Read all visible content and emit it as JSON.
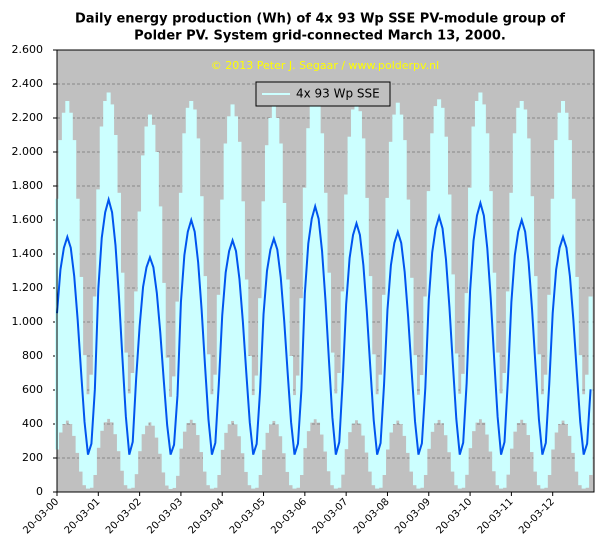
{
  "chart_data": {
    "type": "line",
    "title": [
      "Daily energy production (Wh) of 4x 93 Wp SSE PV-module group of",
      "Polder PV. System grid-connected March 13, 2000."
    ],
    "subtitle": "© 2013 Peter J. Segaar / www.polderpv.nl",
    "legend": "top",
    "grid": true,
    "background": "#c0c0c0",
    "xlim": [
      0,
      156
    ],
    "xticks": [
      {
        "value": 0,
        "label": "20-03-00"
      },
      {
        "value": 12,
        "label": "20-03-01"
      },
      {
        "value": 24,
        "label": "20-03-02"
      },
      {
        "value": 36,
        "label": "20-03-03"
      },
      {
        "value": 48,
        "label": "20-03-04"
      },
      {
        "value": 60,
        "label": "20-03-05"
      },
      {
        "value": 72,
        "label": "20-03-06"
      },
      {
        "value": 84,
        "label": "20-03-07"
      },
      {
        "value": 96,
        "label": "20-03-08"
      },
      {
        "value": 108,
        "label": "20-03-09"
      },
      {
        "value": 120,
        "label": "20-03-10"
      },
      {
        "value": 132,
        "label": "20-03-11"
      },
      {
        "value": 144,
        "label": "20-03-12"
      }
    ],
    "ylim": [
      0,
      2600
    ],
    "yticks": [
      0,
      200,
      400,
      600,
      800,
      {
        "value": 1000,
        "label": "1.000"
      },
      {
        "value": 1200,
        "label": "1.200"
      },
      {
        "value": 1400,
        "label": "1.400"
      },
      {
        "value": 1600,
        "label": "1.600"
      },
      {
        "value": 1800,
        "label": "1.800"
      },
      {
        "value": 2000,
        "label": "2.000"
      },
      {
        "value": 2200,
        "label": "2.200"
      },
      {
        "value": 2400,
        "label": "2.400"
      },
      {
        "value": 2600,
        "label": "2.600"
      }
    ],
    "x": [
      0,
      1,
      2,
      3,
      4,
      5,
      6,
      7,
      8,
      9,
      10,
      11,
      12,
      13,
      14,
      15,
      16,
      17,
      18,
      19,
      20,
      21,
      22,
      23,
      24,
      25,
      26,
      27,
      28,
      29,
      30,
      31,
      32,
      33,
      34,
      35,
      36,
      37,
      38,
      39,
      40,
      41,
      42,
      43,
      44,
      45,
      46,
      47,
      48,
      49,
      50,
      51,
      52,
      53,
      54,
      55,
      56,
      57,
      58,
      59,
      60,
      61,
      62,
      63,
      64,
      65,
      66,
      67,
      68,
      69,
      70,
      71,
      72,
      73,
      74,
      75,
      76,
      77,
      78,
      79,
      80,
      81,
      82,
      83,
      84,
      85,
      86,
      87,
      88,
      89,
      90,
      91,
      92,
      93,
      94,
      95,
      96,
      97,
      98,
      99,
      100,
      101,
      102,
      103,
      104,
      105,
      106,
      107,
      108,
      109,
      110,
      111,
      112,
      113,
      114,
      115,
      116,
      117,
      118,
      119,
      120,
      121,
      122,
      123,
      124,
      125,
      126,
      127,
      128,
      129,
      130,
      131,
      132,
      133,
      134,
      135,
      136,
      137,
      138,
      139,
      140,
      141,
      142,
      143,
      144,
      145,
      146,
      147,
      148,
      149,
      150,
      151,
      152,
      153,
      154,
      155
    ],
    "series": [
      {
        "name": "4x 93 Wp SSE",
        "color": "#ccffff",
        "values": [
          1725,
          2070,
          2231,
          2300,
          2231,
          2070,
          1725,
          1265,
          805,
          575,
          690,
          1150,
          1780,
          2150,
          2300,
          2350,
          2280,
          2100,
          1760,
          1290,
          820,
          580,
          700,
          1180,
          1650,
          1980,
          2150,
          2220,
          2160,
          2000,
          1680,
          1230,
          790,
          560,
          680,
          1120,
          1760,
          2110,
          2260,
          2300,
          2250,
          2080,
          1740,
          1270,
          810,
          575,
          690,
          1160,
          1720,
          2050,
          2210,
          2280,
          2210,
          2060,
          1710,
          1250,
          800,
          570,
          685,
          1140,
          1710,
          2040,
          2200,
          2270,
          2200,
          2050,
          1700,
          1250,
          800,
          570,
          685,
          1140,
          1790,
          2140,
          2300,
          2340,
          2280,
          2110,
          1760,
          1290,
          820,
          580,
          700,
          1180,
          1750,
          2090,
          2250,
          2300,
          2240,
          2080,
          1730,
          1270,
          810,
          575,
          690,
          1160,
          1730,
          2060,
          2220,
          2290,
          2220,
          2070,
          1720,
          1260,
          805,
          572,
          688,
          1150,
          1770,
          2110,
          2270,
          2310,
          2260,
          2090,
          1750,
          1280,
          815,
          578,
          695,
          1170,
          1790,
          2150,
          2300,
          2350,
          2280,
          2110,
          1770,
          1290,
          820,
          580,
          700,
          1180,
          1760,
          2110,
          2260,
          2300,
          2250,
          2080,
          1740,
          1270,
          810,
          575,
          690,
          1160,
          1725,
          2070,
          2231,
          2300,
          2231,
          2070,
          1725,
          1265,
          805,
          575,
          690,
          1150
        ],
        "low": [
          250,
          350,
          400,
          420,
          400,
          330,
          230,
          120,
          40,
          20,
          25,
          100,
          260,
          360,
          410,
          430,
          410,
          340,
          240,
          125,
          40,
          20,
          25,
          105,
          240,
          340,
          390,
          410,
          390,
          320,
          225,
          115,
          38,
          18,
          24,
          95,
          255,
          355,
          405,
          425,
          405,
          335,
          235,
          120,
          40,
          20,
          25,
          100,
          248,
          348,
          398,
          418,
          398,
          328,
          228,
          118,
          40,
          20,
          25,
          100,
          248,
          348,
          398,
          418,
          398,
          328,
          228,
          118,
          40,
          20,
          25,
          100,
          258,
          358,
          408,
          428,
          408,
          338,
          238,
          122,
          40,
          20,
          25,
          102,
          252,
          352,
          402,
          422,
          402,
          332,
          232,
          120,
          40,
          20,
          25,
          100,
          250,
          350,
          400,
          420,
          400,
          330,
          230,
          120,
          40,
          20,
          25,
          100,
          254,
          354,
          404,
          424,
          404,
          334,
          234,
          120,
          40,
          20,
          25,
          101,
          258,
          358,
          408,
          428,
          408,
          338,
          238,
          122,
          40,
          20,
          25,
          102,
          255,
          355,
          405,
          425,
          405,
          335,
          235,
          120,
          40,
          20,
          25,
          100,
          250,
          350,
          400,
          420,
          400,
          330,
          230,
          120,
          40,
          20,
          25,
          100
        ]
      },
      {
        "color": "#0055ee",
        "values": [
          1052,
          1308,
          1436,
          1500,
          1436,
          1270,
          1014,
          706,
          412,
          220,
          284,
          604,
          1195,
          1495,
          1645,
          1720,
          1645,
          1450,
          1150,
          790,
          445,
          220,
          295,
          670,
          974,
          1206,
          1322,
          1380,
          1322,
          1171,
          939,
          661,
          394,
          220,
          278,
          568,
          1117,
          1393,
          1531,
          1600,
          1531,
          1352,
          1076,
          744,
          427,
          220,
          289,
          634,
          1039,
          1291,
          1417,
          1480,
          1417,
          1253,
          1001,
          699,
          409,
          220,
          283,
          598,
          1046,
          1300,
          1426,
          1490,
          1426,
          1262,
          1008,
          703,
          411,
          220,
          284,
          601,
          1169,
          1461,
          1607,
          1680,
          1607,
          1417,
          1125,
          775,
          439,
          220,
          293,
          658,
          1104,
          1376,
          1512,
          1580,
          1512,
          1335,
          1063,
          737,
          424,
          220,
          288,
          628,
          1072,
          1334,
          1465,
          1530,
          1465,
          1294,
          1032,
          718,
          417,
          220,
          286,
          613,
          1130,
          1410,
          1550,
          1620,
          1550,
          1368,
          1088,
          752,
          430,
          220,
          290,
          640,
          1182,
          1478,
          1626,
          1700,
          1626,
          1434,
          1138,
          782,
          442,
          220,
          294,
          664,
          1117,
          1393,
          1531,
          1600,
          1531,
          1352,
          1076,
          744,
          427,
          220,
          289,
          634,
          1052,
          1308,
          1436,
          1500,
          1436,
          1270,
          1014,
          706,
          412,
          220,
          284,
          604
        ]
      }
    ]
  }
}
